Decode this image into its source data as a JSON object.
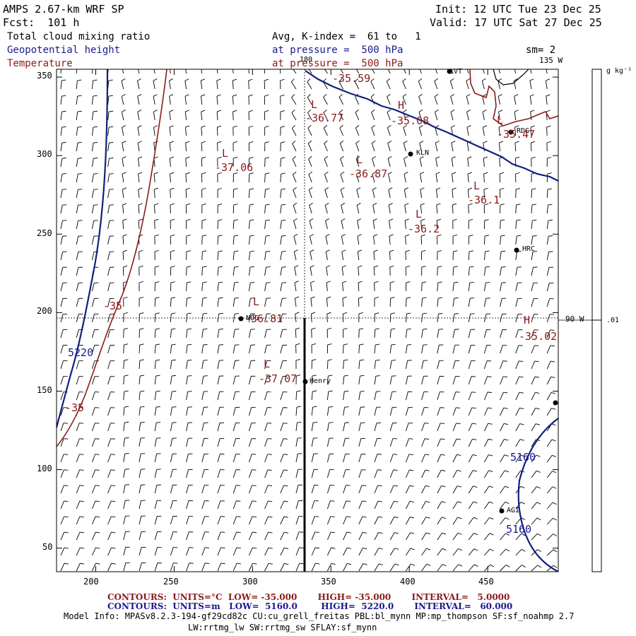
{
  "header": {
    "model": "AMPS 2.67-km WRF SP",
    "forecast": "Fcst:  101 h",
    "init": "Init: 12 UTC Tue 23 Dec 25",
    "valid": "Valid: 17 UTC Sat 27 Dec 25",
    "fields": {
      "cloud": "Total cloud mixing ratio",
      "height": "Geopotential height",
      "temperature": "Temperature"
    },
    "avg_text": "Avg, K-index =  61 to   1",
    "pressure_height": "at pressure =  500 hPa",
    "pressure_temp": "at pressure =  500 hPa",
    "smoothing": "sm= 2"
  },
  "axes": {
    "x_ticks": [
      "200",
      "250",
      "300",
      "350",
      "400",
      "450"
    ],
    "y_ticks": [
      "350",
      "300",
      "250",
      "200",
      "150",
      "100",
      "50"
    ]
  },
  "meridians": {
    "top_180": "180",
    "top_135w": "135 W",
    "right_90w": "90 W"
  },
  "colorbar": {
    "unit": "g kg⁻¹",
    "tick": ".01"
  },
  "stations": [
    {
      "id": "LVT",
      "label": "LVT"
    },
    {
      "id": "RDG",
      "label": "RDG"
    },
    {
      "id": "KLN",
      "label": "KLN"
    },
    {
      "id": "HRC",
      "label": "HRC"
    },
    {
      "id": "NOG",
      "label": "NOG"
    },
    {
      "id": "Henry",
      "label": "Henry"
    },
    {
      "id": "AGI",
      "label": "AGI"
    }
  ],
  "extrema_labels": [
    {
      "id": "L1",
      "symbol": "L",
      "value": "-36.77"
    },
    {
      "id": "L2",
      "symbol": "L",
      "value": "-37.06"
    },
    {
      "id": "L3",
      "symbol": "L",
      "value": "-36.87"
    },
    {
      "id": "L4",
      "symbol": "L",
      "value": "-36.1"
    },
    {
      "id": "L5",
      "symbol": "L",
      "value": "-36.2"
    },
    {
      "id": "L6",
      "symbol": "L",
      "value": "-35.47"
    },
    {
      "id": "L7",
      "symbol": "L",
      "value": "-36.81"
    },
    {
      "id": "L8",
      "symbol": "L",
      "value": "-37.07"
    },
    {
      "id": "H1",
      "symbol": "H",
      "value": "-35.08"
    },
    {
      "id": "H2",
      "symbol": "H",
      "value": "-35.02"
    },
    {
      "id": "V1",
      "symbol": "",
      "value": "-35.59"
    }
  ],
  "contour_labels": {
    "height_5220": "5220",
    "height_5160a": "5160",
    "height_5160b": "5160",
    "temp_35a": "-35",
    "temp_35b": "-35"
  },
  "legend": {
    "line1": "CONTOURS:  UNITS=°C  LOW= -35.000       HIGH= -35.000       INTERVAL=   5.0000",
    "line2": "CONTOURS:  UNITS=m   LOW=  5160.0        HIGH=  5220.0       INTERVAL=   60.000"
  },
  "model_info": {
    "line1": "Model Info: MPASv8.2.3-194-gf29cd82c CU:cu_grell_freitas PBL:bl_mynn MP:mp_thompson SF:sf_noahmp 2.7",
    "line2": "LW:rrtmg_lw SW:rrtmg_sw SFLAY:sf_mynn"
  },
  "colors": {
    "height_contour": "#10207a",
    "temperature_contour": "#8b1a1a",
    "frame": "#000000"
  }
}
